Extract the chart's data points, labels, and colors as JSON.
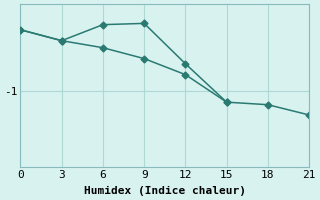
{
  "xlabel": "Humidex (Indice chaleur)",
  "ylabel": "",
  "background_color": "#d8f2f0",
  "line_color": "#2a7a72",
  "grid_color": "#aed8d4",
  "line1_x": [
    0,
    3,
    6,
    9,
    12,
    15
  ],
  "line1_y": [
    -0.05,
    -0.22,
    0.03,
    0.05,
    -0.58,
    -1.18
  ],
  "line2_x": [
    0,
    3,
    6,
    9,
    12,
    15,
    18,
    21
  ],
  "line2_y": [
    -0.05,
    -0.22,
    -0.33,
    -0.5,
    -0.75,
    -1.18,
    -1.22,
    -1.38
  ],
  "xlim": [
    0,
    21
  ],
  "ylim": [
    -2.2,
    0.35
  ],
  "xticks": [
    0,
    3,
    6,
    9,
    12,
    15,
    18,
    21
  ],
  "yticks": [
    -1
  ],
  "ytick_labels": [
    "-1"
  ],
  "font_family": "monospace",
  "font_size": 8,
  "linewidth": 1.1,
  "markersize": 3.5
}
